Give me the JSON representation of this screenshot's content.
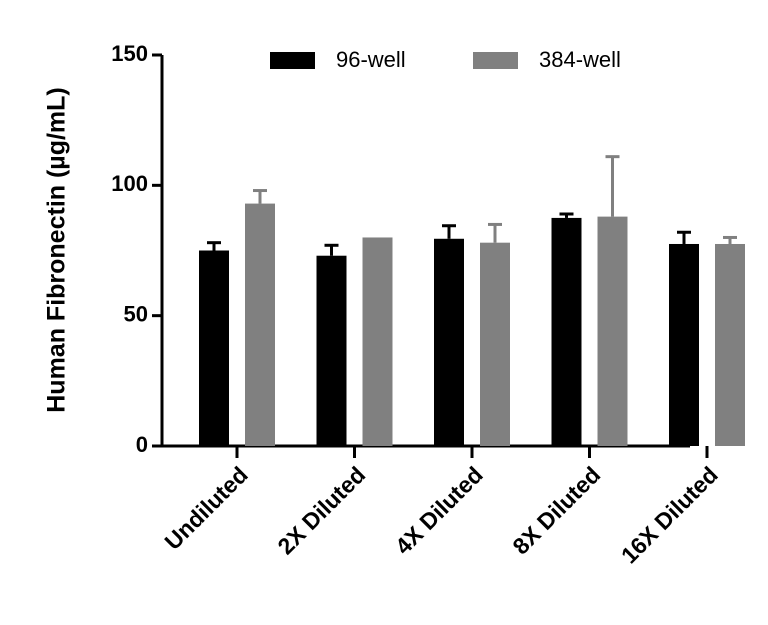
{
  "chart_data": {
    "type": "bar",
    "title": "",
    "xlabel": "",
    "ylabel": "Human Fibronectin (µg/mL)",
    "ylim": [
      0,
      150
    ],
    "yticks": [
      0,
      50,
      100,
      150
    ],
    "ytick_labels": [
      "0",
      "50",
      "100",
      "150"
    ],
    "categories": [
      "Undiluted",
      "2X Diluted",
      "4X Diluted",
      "8X Diluted",
      "16X Diluted"
    ],
    "series": [
      {
        "name": "96-well",
        "color": "#000000",
        "values": [
          75,
          73,
          79.5,
          87.5,
          77.5
        ],
        "errors": [
          3,
          4,
          5,
          1.5,
          4.5
        ]
      },
      {
        "name": "384-well",
        "color": "#808080",
        "values": [
          93,
          80,
          78,
          88,
          77.5
        ],
        "errors": [
          5,
          0,
          7,
          23,
          2.5
        ]
      }
    ],
    "legend_position": "top"
  }
}
